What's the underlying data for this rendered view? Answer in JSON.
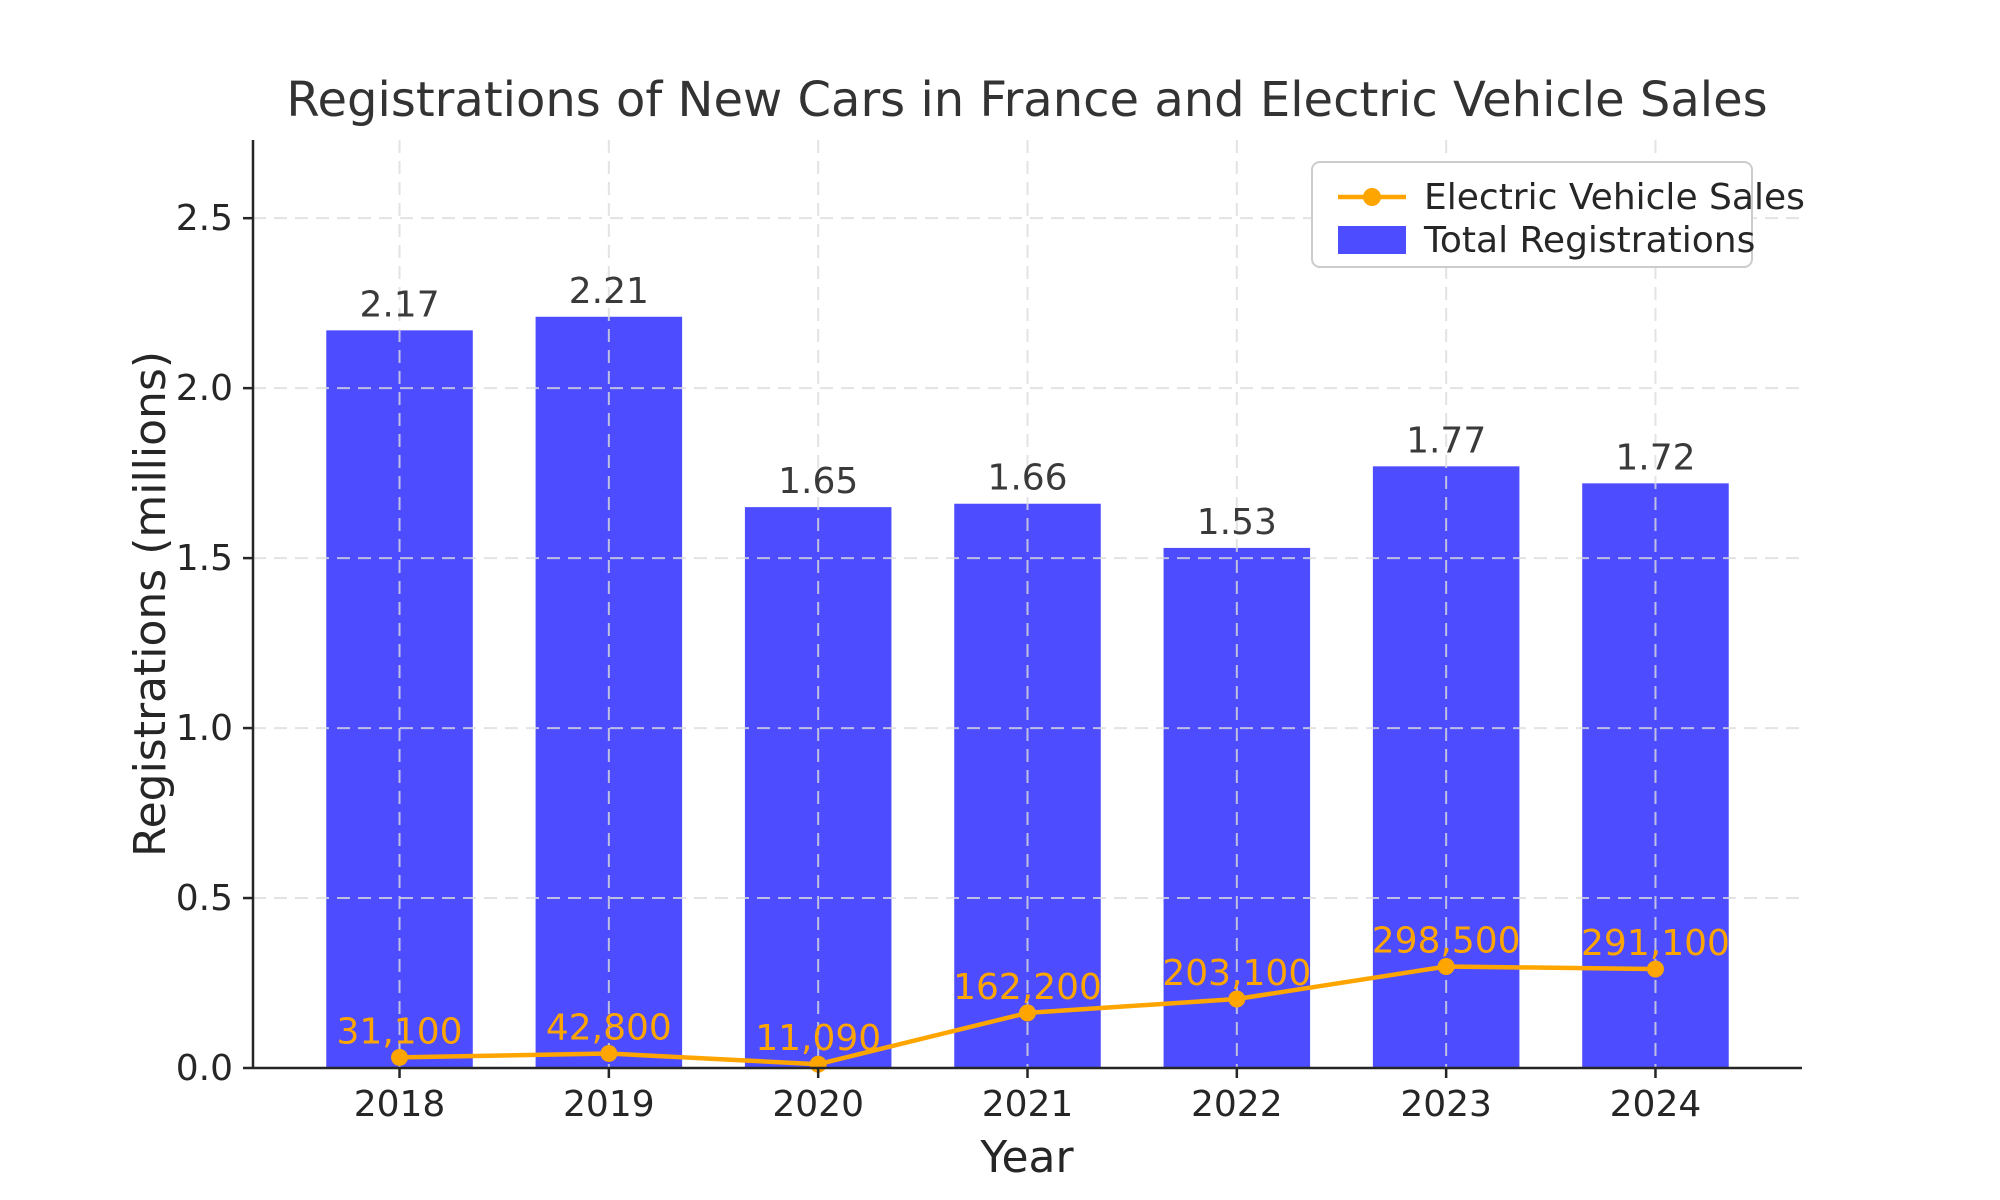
{
  "chart_data": {
    "type": "bar+line",
    "title": "Registrations of New Cars in France and Electric Vehicle Sales",
    "xlabel": "Year",
    "ylabel": "Registrations (millions)",
    "categories": [
      "2018",
      "2019",
      "2020",
      "2021",
      "2022",
      "2023",
      "2024"
    ],
    "series": [
      {
        "name": "Total Registrations",
        "type": "bar",
        "color": "#4D4DFF",
        "unit": "millions",
        "values": [
          2.17,
          2.21,
          1.65,
          1.66,
          1.53,
          1.77,
          1.72
        ],
        "bar_labels": [
          "2.17",
          "2.21",
          "1.65",
          "1.66",
          "1.53",
          "1.77",
          "1.72"
        ]
      },
      {
        "name": "Electric Vehicle Sales",
        "type": "line",
        "color": "#FFA500",
        "unit": "vehicles",
        "values": [
          31100,
          42800,
          11090,
          162200,
          203100,
          298500,
          291100
        ],
        "values_millions": [
          0.0311,
          0.0428,
          0.01109,
          0.1622,
          0.2031,
          0.2985,
          0.2911
        ],
        "point_labels": [
          "31,100",
          "42,800",
          "11,090",
          "162,200",
          "203,100",
          "298,500",
          "291,100"
        ]
      }
    ],
    "ylim": [
      0,
      2.73
    ],
    "yticks": [
      0.0,
      0.5,
      1.0,
      1.5,
      2.0,
      2.5
    ],
    "ytick_labels": [
      "0.0",
      "0.5",
      "1.0",
      "1.5",
      "2.0",
      "2.5"
    ],
    "grid": "dashed, both axes, drawn above bars",
    "legend": {
      "position": "upper right",
      "entries": [
        "Electric Vehicle Sales",
        "Total Registrations"
      ]
    },
    "colors": {
      "bar": "#4D4DFF",
      "line": "#FFA500",
      "grid": "#dcdcdc",
      "axis": "#262626",
      "value_text": "#3a3a3a"
    }
  }
}
